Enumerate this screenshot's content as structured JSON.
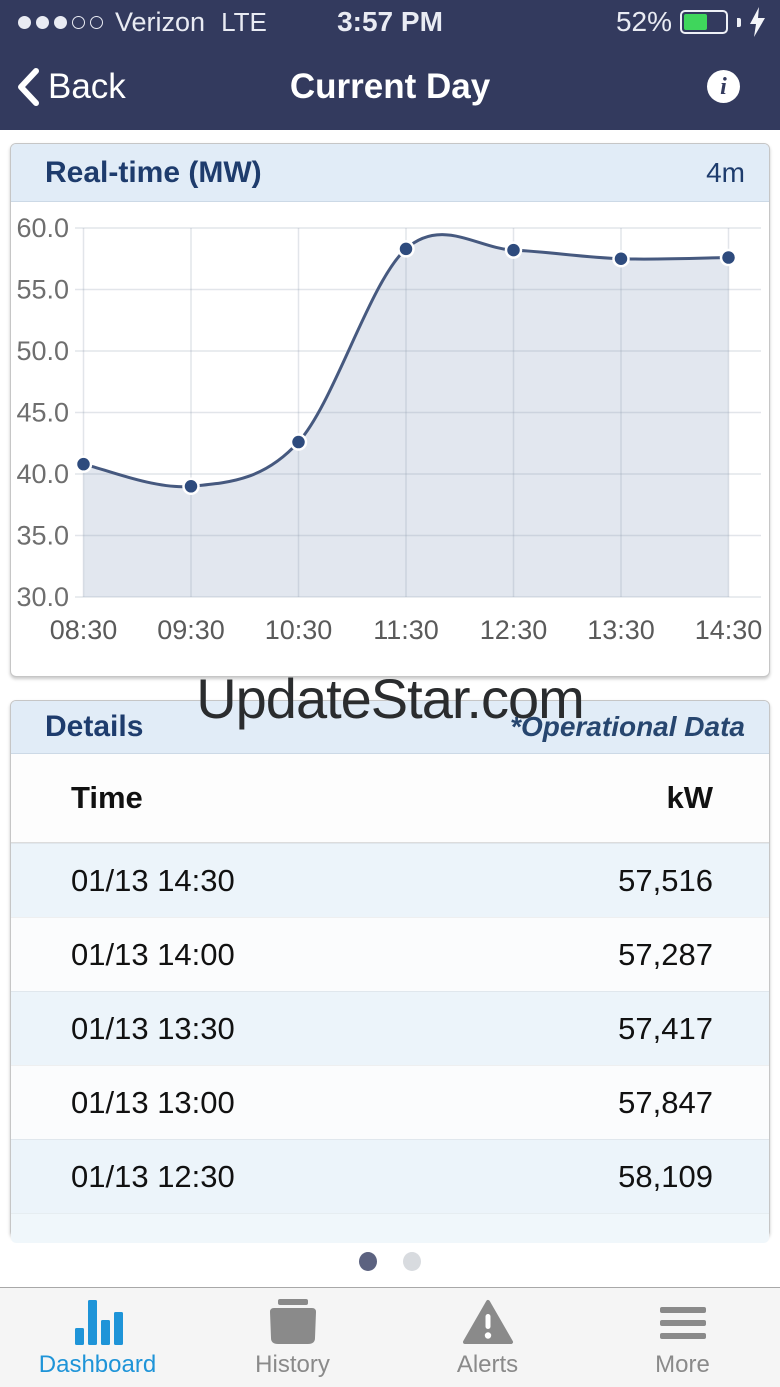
{
  "status_bar": {
    "carrier": "Verizon",
    "network": "LTE",
    "time": "3:57 PM",
    "battery_percent": "52%",
    "battery_color": "#3fd65c",
    "signal_filled": 3,
    "signal_total": 5
  },
  "nav_bar": {
    "back_label": "Back",
    "title": "Current Day",
    "info_glyph": "i"
  },
  "watermark": "UpdateStar.com",
  "chart_card": {
    "title": "Real-time (MW)",
    "refresh_badge": "4m"
  },
  "chart_data": {
    "type": "area",
    "title": "Real-time (MW)",
    "x": [
      "08:30",
      "09:30",
      "10:30",
      "11:30",
      "12:30",
      "13:30",
      "14:30"
    ],
    "values": [
      40.8,
      39.0,
      42.6,
      58.3,
      58.2,
      57.5,
      57.6
    ],
    "xlabel": "",
    "ylabel": "MW",
    "ylim": [
      30,
      60
    ],
    "yticks": [
      30,
      35,
      40,
      45,
      50,
      55,
      60
    ],
    "grid": true,
    "legend": false,
    "smooth": true,
    "line_color": "#46597f",
    "fill_color": "rgba(203,211,226,0.55)",
    "point_color": "#2e4b7d",
    "grid_color": "rgba(140,150,170,0.25)",
    "tick_label_color": "#6e6e6e"
  },
  "details_card": {
    "title": "Details",
    "note": "*Operational Data",
    "columns": {
      "time": "Time",
      "value": "kW"
    },
    "rows": [
      {
        "time": "01/13 14:30",
        "kw": "57,516"
      },
      {
        "time": "01/13 14:00",
        "kw": "57,287"
      },
      {
        "time": "01/13 13:30",
        "kw": "57,417"
      },
      {
        "time": "01/13 13:00",
        "kw": "57,847"
      },
      {
        "time": "01/13 12:30",
        "kw": "58,109"
      }
    ]
  },
  "pager": {
    "count": 2,
    "active_index": 0
  },
  "tab_bar": {
    "active_color": "#1e94d8",
    "inactive_color": "#8a8a8a",
    "items": [
      {
        "label": "Dashboard",
        "icon": "bar-chart-icon",
        "active": true
      },
      {
        "label": "History",
        "icon": "archive-icon",
        "active": false
      },
      {
        "label": "Alerts",
        "icon": "warning-icon",
        "active": false
      },
      {
        "label": "More",
        "icon": "menu-icon",
        "active": false
      }
    ]
  },
  "colors": {
    "navy": "#333a5e",
    "card_header_bg": "#e1ecf7",
    "header_text": "#1e3c6d",
    "row_alt_bg": "#ecf4fa",
    "tabbar_bg": "#f5f5f5"
  }
}
